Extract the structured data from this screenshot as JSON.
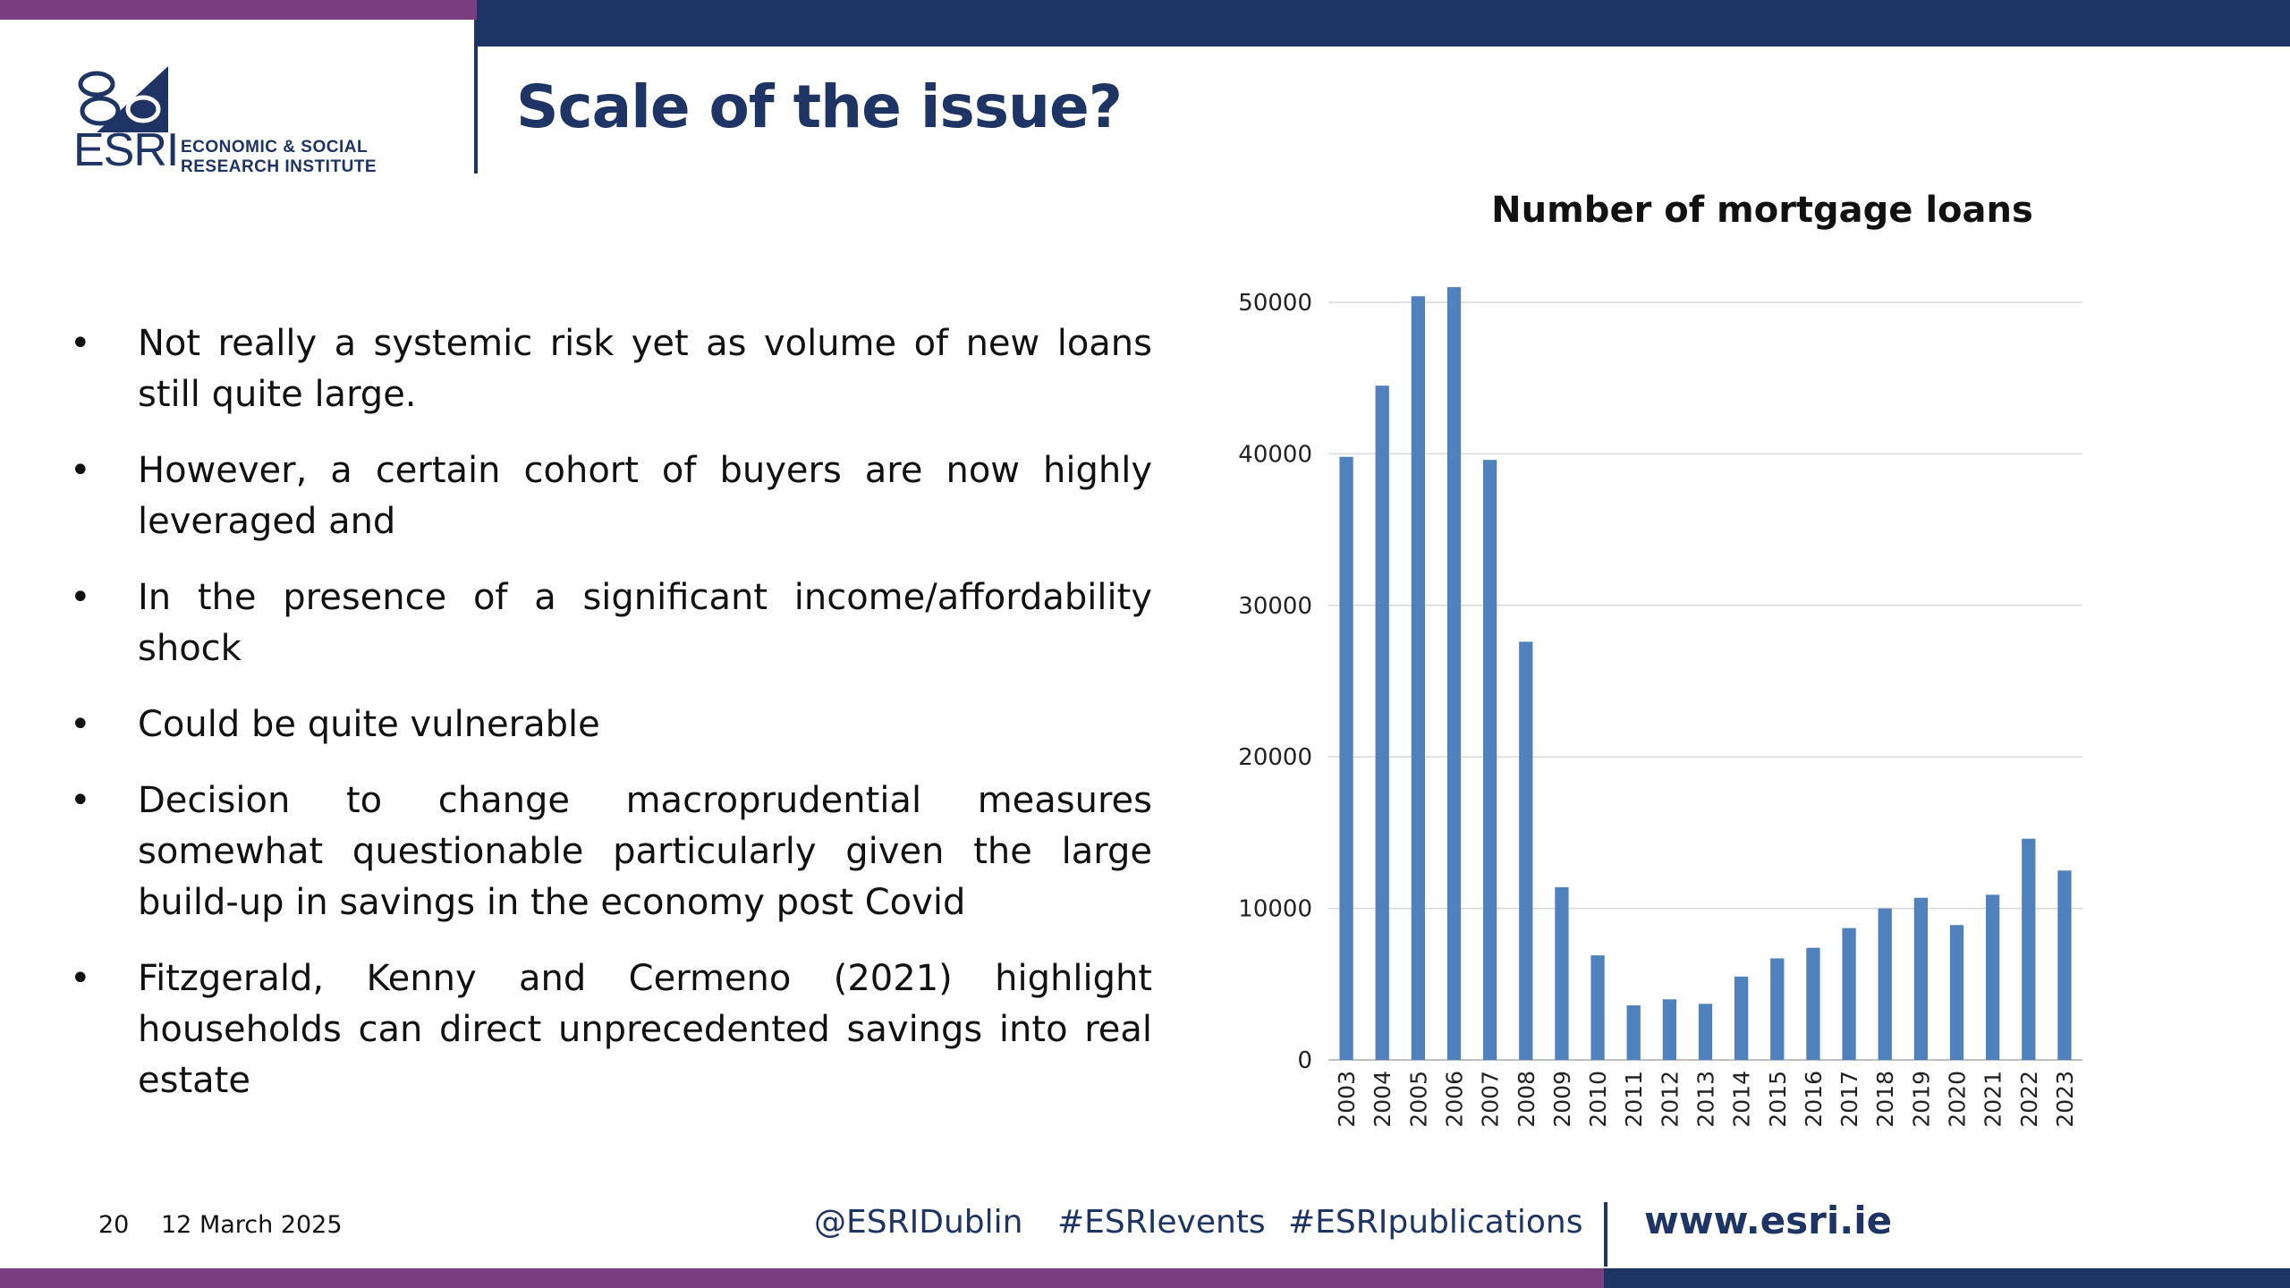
{
  "header": {
    "logo_main": "ESRI",
    "logo_sub_line1": "ECONOMIC & SOCIAL",
    "logo_sub_line2": "RESEARCH INSTITUTE",
    "title": "Scale of the issue?"
  },
  "bullets": [
    "Not really a systemic risk yet as volume of new loans still quite large.",
    "However, a certain cohort of buyers are now highly leveraged and",
    "In the presence of a significant income/affordability shock",
    "Could be quite vulnerable",
    "Decision to change macroprudential measures somewhat questionable particularly given the large build-up in savings in the economy post Covid",
    "Fitzgerald, Kenny and Cermeno (2021) highlight households can direct unprecedented savings into real estate"
  ],
  "chart_data": {
    "type": "bar",
    "title": "Number of mortgage loans",
    "xlabel": "",
    "ylabel": "",
    "ylim": [
      0,
      50000
    ],
    "yticks": [
      0,
      10000,
      20000,
      30000,
      40000,
      50000
    ],
    "grid": true,
    "bar_color": "#4f81bd",
    "categories": [
      "2003",
      "2004",
      "2005",
      "2006",
      "2007",
      "2008",
      "2009",
      "2010",
      "2011",
      "2012",
      "2013",
      "2014",
      "2015",
      "2016",
      "2017",
      "2018",
      "2019",
      "2020",
      "2021",
      "2022",
      "2023"
    ],
    "values": [
      39800,
      44500,
      50400,
      51000,
      39600,
      27600,
      11400,
      6900,
      3600,
      4000,
      3700,
      5500,
      6700,
      7400,
      8700,
      10000,
      10700,
      8900,
      10900,
      14600,
      12500
    ]
  },
  "footer": {
    "page_number": "20",
    "date": "12 March 2025",
    "social_1": "@ESRIDublin",
    "social_2": "#ESRIevents",
    "social_3": "#ESRIpublications",
    "url": "www.esri.ie"
  },
  "colors": {
    "navy": "#1e3464",
    "purple": "#7b3f7f"
  }
}
